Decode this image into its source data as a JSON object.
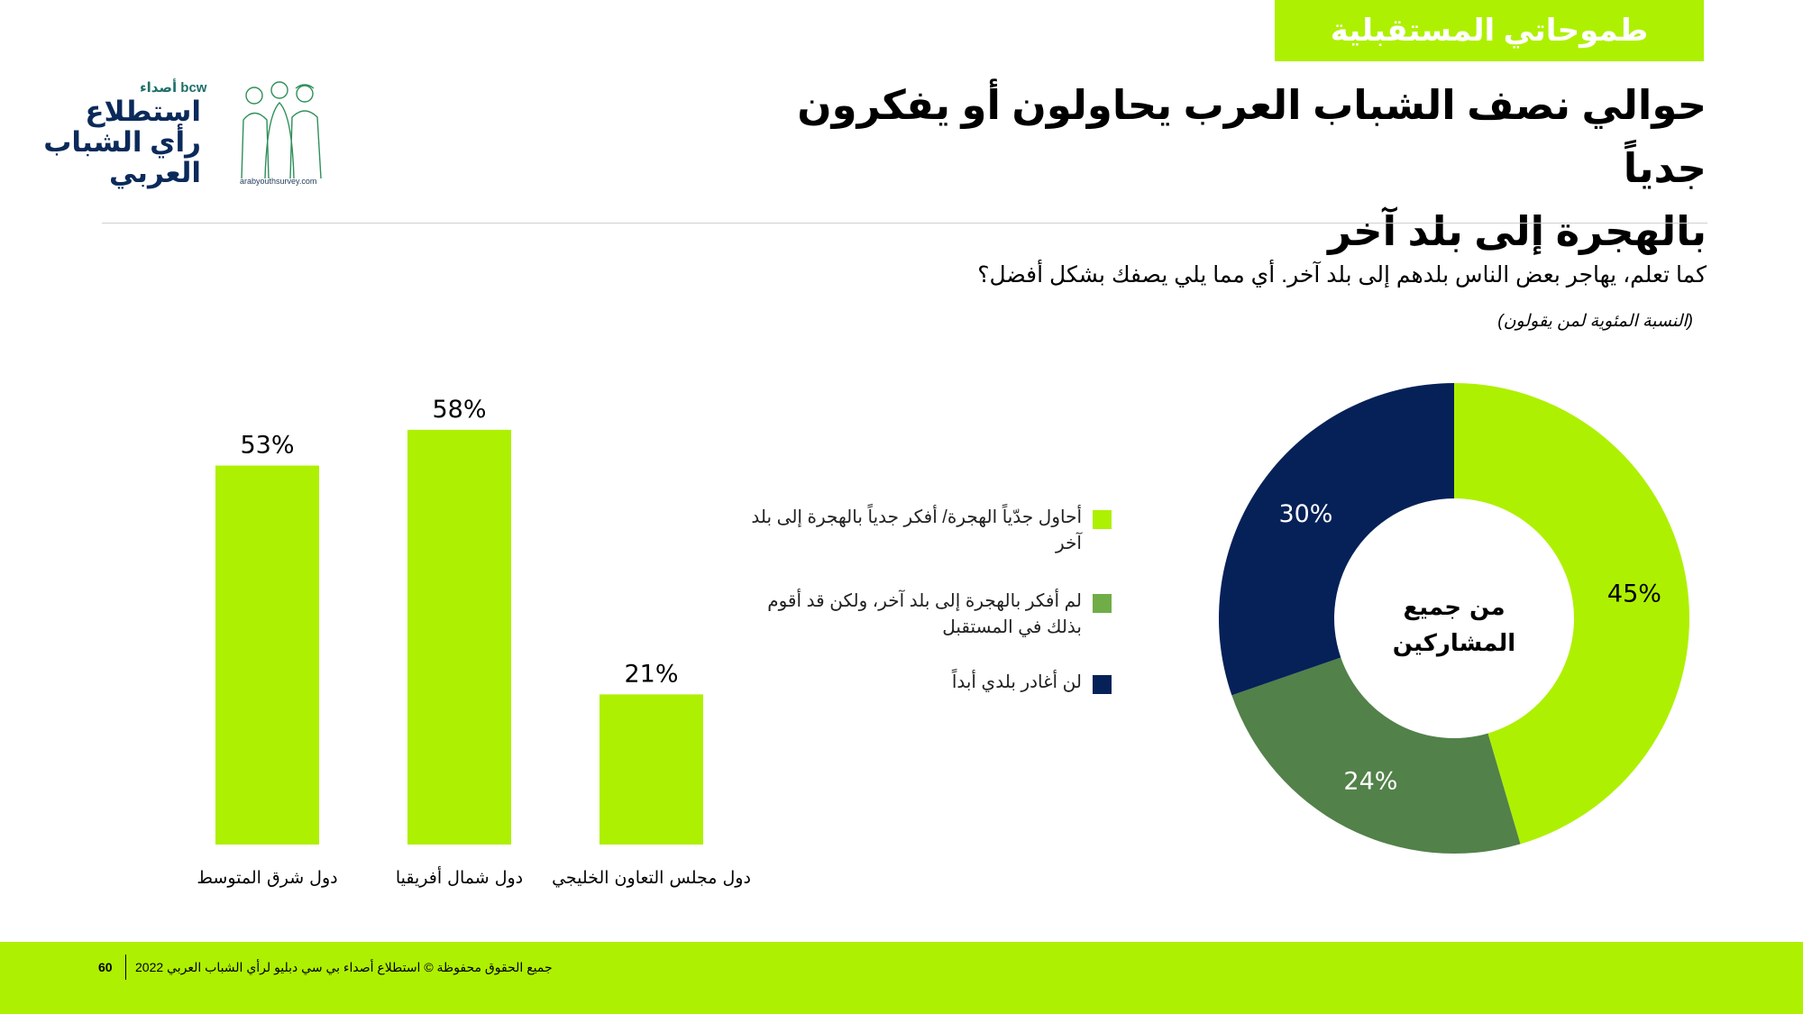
{
  "header": {
    "tag": "طموحاتي المستقبلية",
    "title_line1": "حوالي نصف الشباب العرب يحاولون أو يفكرون جدياً",
    "title_line2": "بالهجرة إلى بلد آخر"
  },
  "logo": {
    "brand": "bcw أصداء",
    "line1": "استطلاع",
    "line2": "رأي الشباب",
    "line3": "العربي",
    "url": "arabyouthsurvey.com"
  },
  "question": "كما تعلم، يهاجر بعض الناس بلدهم إلى بلد آخر. أي مما يلي يصفك بشكل أفضل؟",
  "subnote": "(النسبة المئوية لمن يقولون)",
  "colors": {
    "accent": "#aef002",
    "mid_green": "#528149",
    "navy": "#052158"
  },
  "legend": [
    {
      "label": "أحاول جدّياً الهجرة/ أفكر جدياً بالهجرة إلى بلد آخر",
      "color": "#aef002"
    },
    {
      "label": "لم أفكر  بالهجرة إلى بلد آخر، ولكن قد أقوم بذلك في المستقبل",
      "color": "#70ad47"
    },
    {
      "label": "لن أغادر بلدي أبداً",
      "color": "#052158"
    }
  ],
  "chart_data": [
    {
      "type": "bar",
      "categories": [
        "دول شرق المتوسط",
        "دول شمال أفريقيا",
        "دول مجلس التعاون الخليجي"
      ],
      "values": [
        53,
        58,
        21
      ],
      "value_labels": [
        "53%",
        "58%",
        "21%"
      ],
      "ylim": [
        0,
        60
      ],
      "grid": false,
      "color": "#aef002"
    },
    {
      "type": "pie",
      "center_label": "من جميع المشاركين",
      "labels": [
        "أحاول جدّياً الهجرة/ أفكر جدياً بالهجرة إلى بلد آخر",
        "لم أفكر  بالهجرة إلى بلد آخر، ولكن قد أقوم بذلك في المستقبل",
        "لن أغادر بلدي أبداً"
      ],
      "values": [
        45,
        24,
        30
      ],
      "value_labels": [
        "45%",
        "24%",
        "30%"
      ],
      "colors": [
        "#aef002",
        "#528149",
        "#052158"
      ],
      "donut": true
    }
  ],
  "footer": {
    "page_number": "60",
    "copyright": "جميع الحقوق محفوظة © استطلاع أصداء بي سي دبليو لرأي الشباب العربي 2022"
  }
}
